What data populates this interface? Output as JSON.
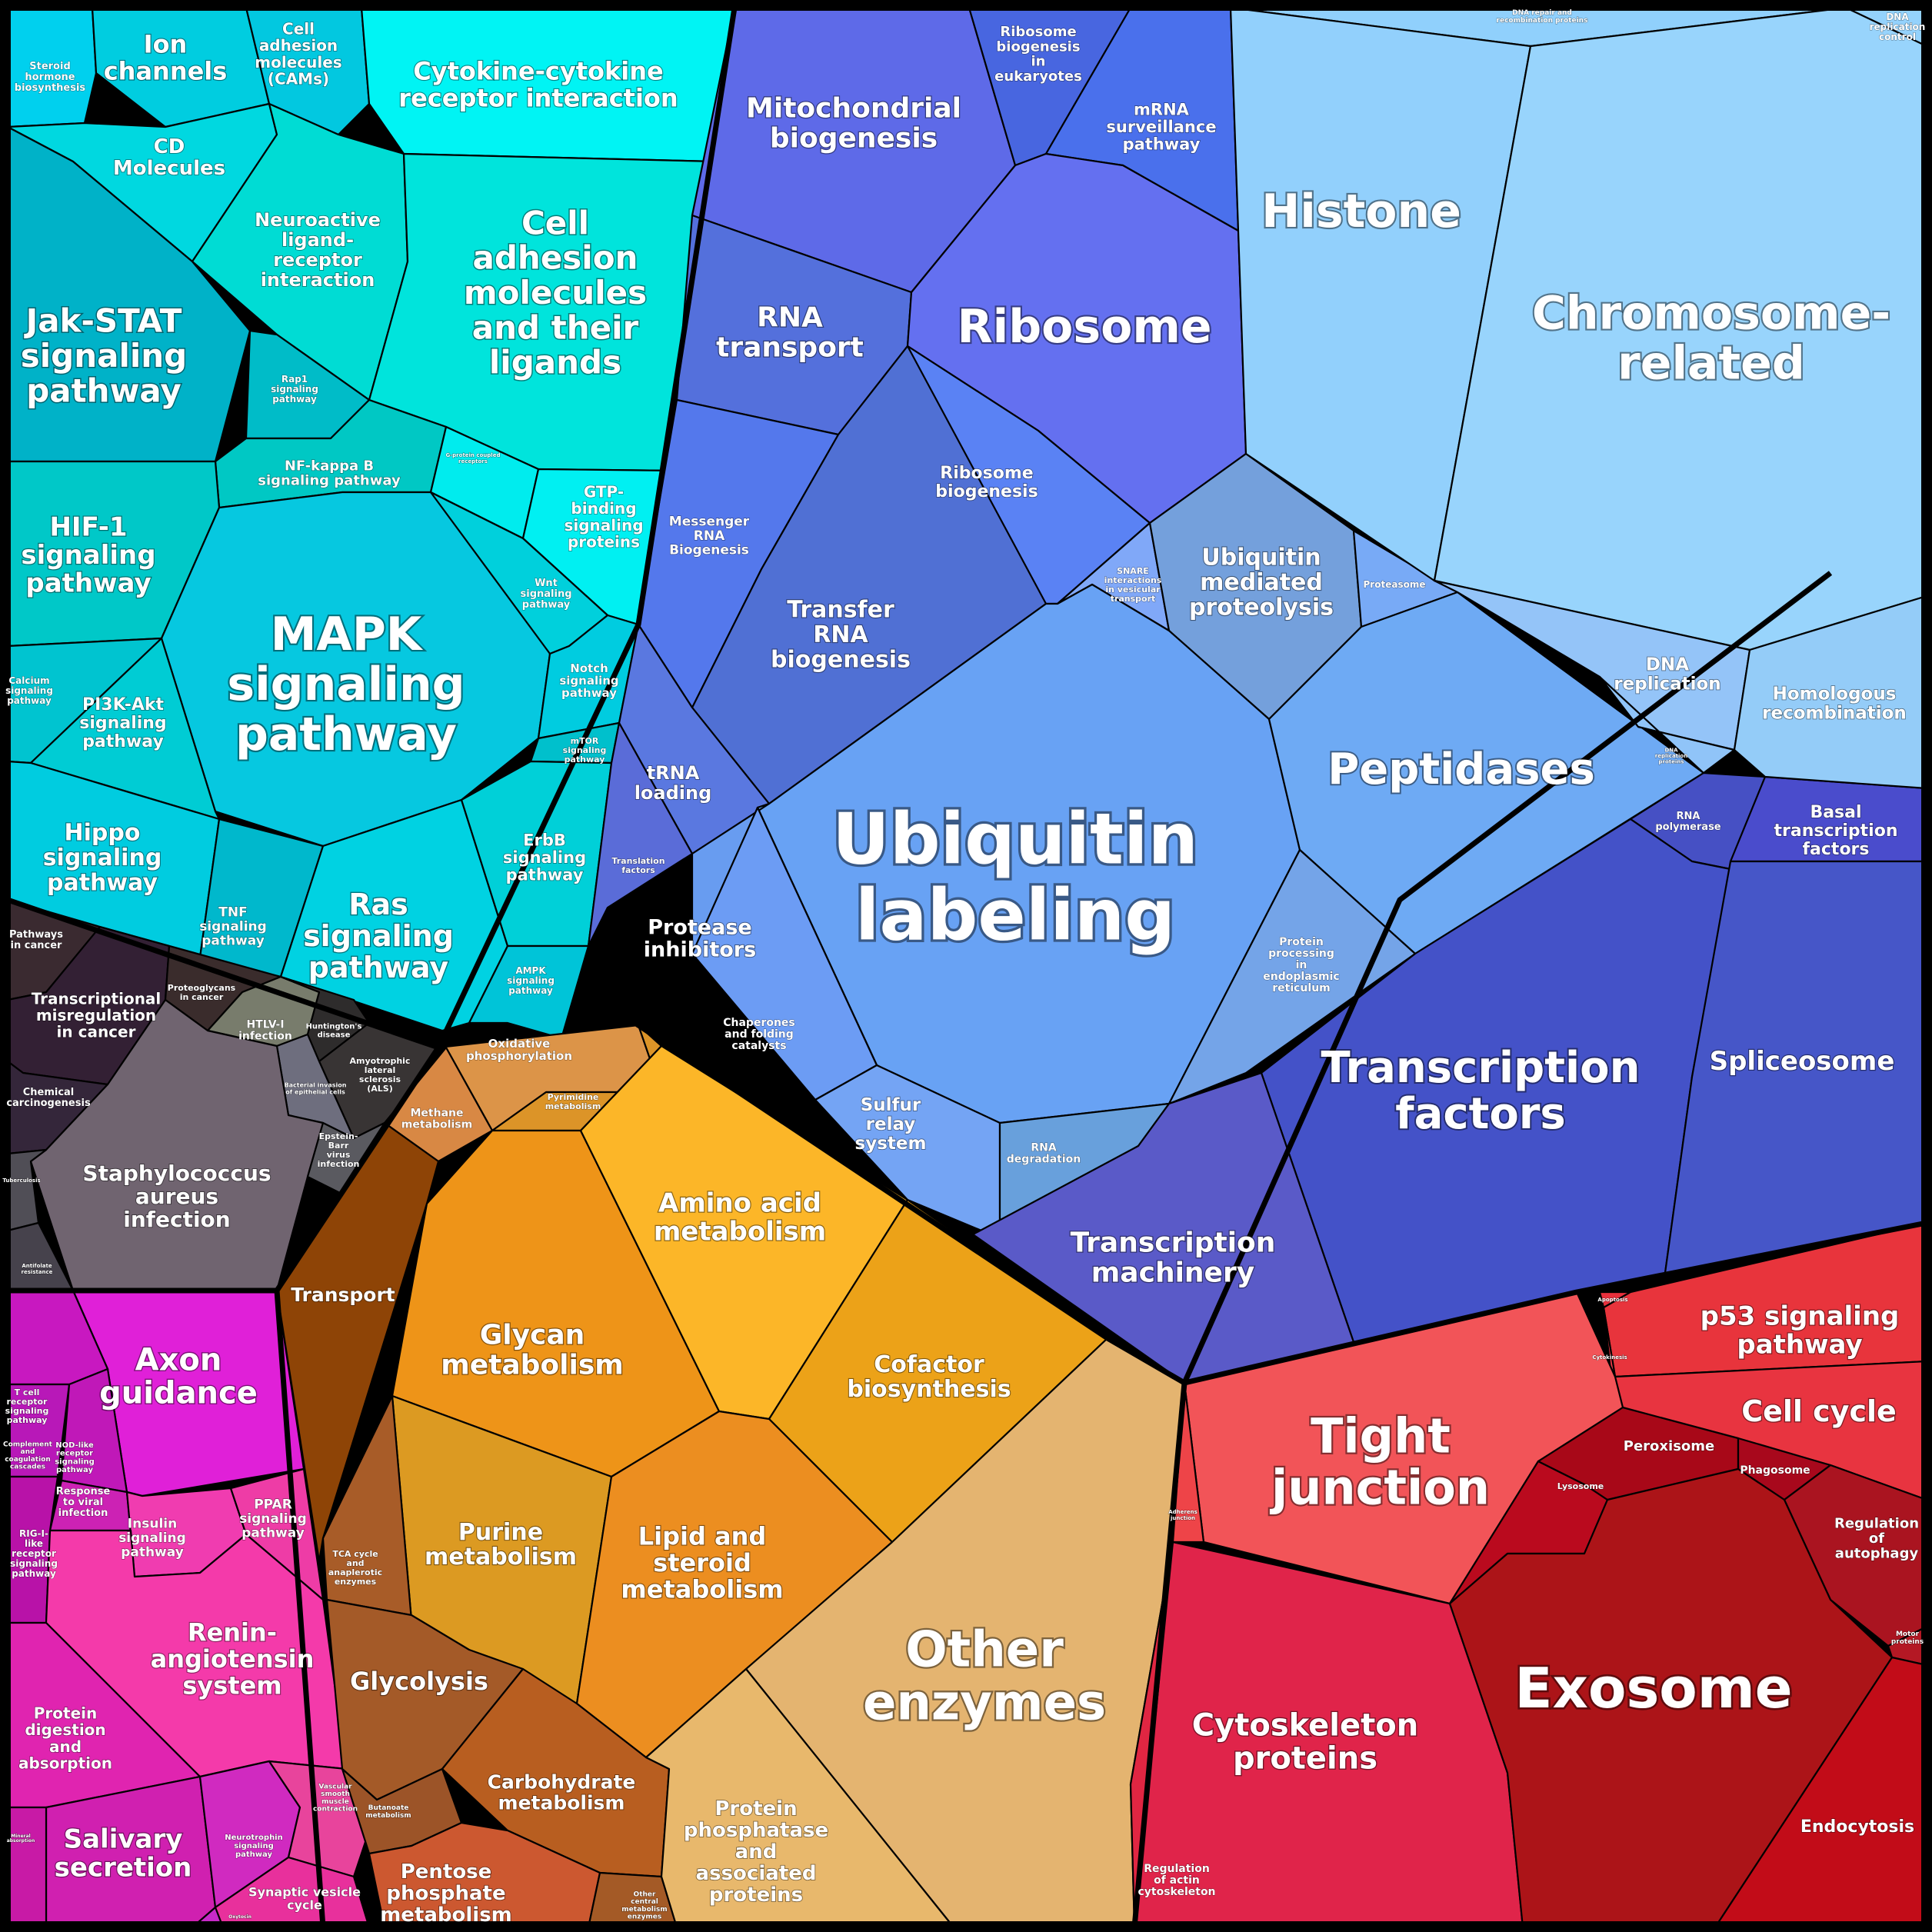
{
  "groups": [
    {
      "id": "signaling",
      "color": "#00d8e6"
    },
    {
      "id": "disease",
      "color": "#554450"
    },
    {
      "id": "organismal",
      "color": "#ee33cc"
    },
    {
      "id": "genetic",
      "color": "#5a6ae8"
    },
    {
      "id": "dna",
      "color": "#88c8ff"
    },
    {
      "id": "metabolism",
      "color": "#f09e20"
    },
    {
      "id": "cellular",
      "color": "#e02a3c"
    }
  ],
  "cells": [
    {
      "id": "c1",
      "label": [
        "Steroid",
        "hormone",
        "biosynthesis"
      ],
      "color": "#00d0ee"
    },
    {
      "id": "c2",
      "label": [
        "Ion",
        "channels"
      ],
      "color": "#00cde0"
    },
    {
      "id": "c3",
      "label": [
        "Cell",
        "adhesion",
        "molecules",
        "(CAMs)"
      ],
      "color": "#02c8e0"
    },
    {
      "id": "c4",
      "label": [
        "Cytokine-cytokine",
        "receptor interaction"
      ],
      "color": "#00f4f4"
    },
    {
      "id": "c5",
      "label": [
        "CD",
        "Molecules"
      ],
      "color": "#00d8e0"
    },
    {
      "id": "c6",
      "label": [
        "Neuroactive",
        "ligand-",
        "receptor",
        "interaction"
      ],
      "color": "#00dcd4"
    },
    {
      "id": "c7",
      "label": [
        "Cell",
        "adhesion",
        "molecules",
        "and their",
        "ligands"
      ],
      "color": "#00e4dc"
    },
    {
      "id": "c8",
      "label": [
        "Jak-STAT",
        "signaling",
        "pathway"
      ],
      "color": "#00b2c8"
    },
    {
      "id": "c9",
      "label": [
        "Rap1",
        "signaling",
        "pathway"
      ],
      "color": "#00bcc8"
    },
    {
      "id": "c10",
      "label": [
        "NF-kappa B",
        "signaling pathway"
      ],
      "color": "#00c8c4"
    },
    {
      "id": "c11",
      "label": [
        "G-protein coupled",
        "receptors"
      ],
      "color": "#00ecee"
    },
    {
      "id": "c12",
      "label": [
        "GTP-",
        "binding",
        "signaling",
        "proteins"
      ],
      "color": "#00f0f2"
    },
    {
      "id": "c13",
      "label": [
        "HIF-1",
        "signaling",
        "pathway"
      ],
      "color": "#00c8c8"
    },
    {
      "id": "c14",
      "label": [
        "MAPK",
        "signaling",
        "pathway"
      ],
      "color": "#06c8e0"
    },
    {
      "id": "c15",
      "label": [
        "Wnt",
        "signaling",
        "pathway"
      ],
      "color": "#00d0dc"
    },
    {
      "id": "c16",
      "label": [
        "Notch",
        "signaling",
        "pathway"
      ],
      "color": "#00cce0"
    },
    {
      "id": "c17",
      "label": [
        "mTOR",
        "signaling",
        "pathway"
      ],
      "color": "#00c0cc"
    },
    {
      "id": "c18",
      "label": [
        "Calcium",
        "signaling",
        "pathway"
      ],
      "color": "#00c4d0"
    },
    {
      "id": "c19",
      "label": [
        "PI3K-Akt",
        "signaling",
        "pathway"
      ],
      "color": "#00ccd4"
    },
    {
      "id": "c20",
      "label": [
        "Hippo",
        "signaling",
        "pathway"
      ],
      "color": "#00cce0"
    },
    {
      "id": "c21",
      "label": [
        "TNF",
        "signaling",
        "pathway"
      ],
      "color": "#00b8cc"
    },
    {
      "id": "c22",
      "label": [
        "Ras",
        "signaling",
        "pathway"
      ],
      "color": "#00d2e2"
    },
    {
      "id": "c23",
      "label": [
        "ErbB",
        "signaling",
        "pathway"
      ],
      "color": "#00d0d8"
    },
    {
      "id": "c24",
      "label": [
        "AMPK",
        "signaling",
        "pathway"
      ],
      "color": "#00c4d8"
    },
    {
      "id": "d1",
      "label": [
        "Pathways",
        "in cancer"
      ],
      "color": "#3a2a30"
    },
    {
      "id": "d2",
      "label": [
        "Transcriptional",
        "misregulation",
        "in cancer"
      ],
      "color": "#332034"
    },
    {
      "id": "d3",
      "label": [
        "Proteoglycans",
        "in cancer"
      ],
      "color": "#3a2c2c"
    },
    {
      "id": "d4",
      "label": [
        "HTLV-I",
        "infection"
      ],
      "color": "#787c6c"
    },
    {
      "id": "d5",
      "label": [
        "Huntington's",
        "disease"
      ],
      "color": "#2e2c2c"
    },
    {
      "id": "d6",
      "label": [
        "Chemical",
        "carcinogenesis"
      ],
      "color": "#34263a"
    },
    {
      "id": "d7",
      "label": [
        "Amyotrophic",
        "lateral",
        "sclerosis",
        "(ALS)"
      ],
      "color": "#383434"
    },
    {
      "id": "d8",
      "label": [
        "Bacterial invasion",
        "of epithelial cells"
      ],
      "color": "#6e6e7e"
    },
    {
      "id": "d9",
      "label": [
        "Staphylococcus",
        "aureus",
        "infection"
      ],
      "color": "#706470"
    },
    {
      "id": "d10",
      "label": [
        "Epstein-",
        "Barr",
        "virus",
        "infection"
      ],
      "color": "#5a5a60"
    },
    {
      "id": "d11",
      "label": [
        "Tuberculosis"
      ],
      "color": "#504e56"
    },
    {
      "id": "d12",
      "label": [
        "Antifolate",
        "resistance"
      ],
      "color": "#46424c"
    },
    {
      "id": "o1",
      "label": [
        "Axon",
        "guidance"
      ],
      "color": "#e020d8"
    },
    {
      "id": "o2",
      "label": [
        "T cell",
        "receptor",
        "signaling",
        "pathway"
      ],
      "color": "#c818c0"
    },
    {
      "id": "o3",
      "label": [
        "Complement",
        "and",
        "coagulation",
        "cascades"
      ],
      "color": "#b818b8"
    },
    {
      "id": "o4",
      "label": [
        "NOD-like",
        "receptor",
        "signaling",
        "pathway"
      ],
      "color": "#c018b8"
    },
    {
      "id": "o5",
      "label": [
        "Response",
        "to viral",
        "infection"
      ],
      "color": "#cc22b4"
    },
    {
      "id": "o6",
      "label": [
        "RIG-I-",
        "like",
        "receptor",
        "signaling",
        "pathway"
      ],
      "color": "#b812a8"
    },
    {
      "id": "o7",
      "label": [
        "Insulin",
        "signaling",
        "pathway"
      ],
      "color": "#f03cb0"
    },
    {
      "id": "o8",
      "label": [
        "PPAR",
        "signaling",
        "pathway"
      ],
      "color": "#ee3ca6"
    },
    {
      "id": "o9",
      "label": [
        "Renin-",
        "angiotensin",
        "system"
      ],
      "color": "#f43aaa"
    },
    {
      "id": "o10",
      "label": [
        "Protein",
        "digestion",
        "and",
        "absorption"
      ],
      "color": "#e024b0"
    },
    {
      "id": "o11",
      "label": [
        "Salivary",
        "secretion"
      ],
      "color": "#d020b0"
    },
    {
      "id": "o12",
      "label": [
        "Mineral",
        "absorption"
      ],
      "color": "#c81aa6"
    },
    {
      "id": "o13",
      "label": [
        "Neurotrophin",
        "signaling",
        "pathway"
      ],
      "color": "#d02ac0"
    },
    {
      "id": "o14",
      "label": [
        "Synaptic vesicle",
        "cycle"
      ],
      "color": "#c82ac8"
    },
    {
      "id": "o15",
      "label": [
        "Vascular",
        "smooth",
        "muscle",
        "contraction"
      ],
      "color": "#e8449c"
    },
    {
      "id": "o16",
      "label": [
        "Oxytocin"
      ],
      "color": "#e8309c"
    },
    {
      "id": "g1",
      "label": [
        "Mitochondrial",
        "biogenesis"
      ],
      "color": "#5e6ae8"
    },
    {
      "id": "g2",
      "label": [
        "Ribosome",
        "biogenesis",
        "in",
        "eukaryotes"
      ],
      "color": "#4866e0"
    },
    {
      "id": "g3",
      "label": [
        "mRNA",
        "surveillance",
        "pathway"
      ],
      "color": "#4a70ec"
    },
    {
      "id": "g4",
      "label": [
        "RNA",
        "transport"
      ],
      "color": "#5470dc"
    },
    {
      "id": "g5",
      "label": [
        "Ribosome"
      ],
      "color": "#6470f0"
    },
    {
      "id": "g6",
      "label": [
        "Messenger",
        "RNA",
        "Biogenesis"
      ],
      "color": "#5478ec"
    },
    {
      "id": "g7",
      "label": [
        "Transfer",
        "RNA",
        "biogenesis"
      ],
      "color": "#5070d4"
    },
    {
      "id": "g8",
      "label": [
        "Ribosome",
        "biogenesis"
      ],
      "color": "#5a82f4"
    },
    {
      "id": "g9",
      "label": [
        "tRNA",
        "loading"
      ],
      "color": "#5a78e0"
    },
    {
      "id": "g10",
      "label": [
        "Translation",
        "factors"
      ],
      "color": "#5a6cd8"
    },
    {
      "id": "g11",
      "label": [
        "SNARE",
        "interactions",
        "in vesicular",
        "transport"
      ],
      "color": "#80a8f8"
    },
    {
      "id": "g12",
      "label": [
        "Ubiquitin",
        "mediated",
        "proteolysis"
      ],
      "color": "#74a0dc"
    },
    {
      "id": "g13",
      "label": [
        "Proteasome"
      ],
      "color": "#78aaf6"
    },
    {
      "id": "g14",
      "label": [
        "Ubiquitin",
        "labeling"
      ],
      "color": "#68a2f4"
    },
    {
      "id": "g15",
      "label": [
        "Peptidases"
      ],
      "color": "#6eaaf4"
    },
    {
      "id": "g16",
      "label": [
        "Protease",
        "inhibitors"
      ],
      "color": "#689cf0"
    },
    {
      "id": "g17",
      "label": [
        "Chaperones",
        "and folding",
        "catalysts"
      ],
      "color": "#6c9cf4"
    },
    {
      "id": "g18",
      "label": [
        "Sulfur",
        "relay",
        "system"
      ],
      "color": "#74a4f4"
    },
    {
      "id": "g19",
      "label": [
        "RNA",
        "degradation"
      ],
      "color": "#68a0dc"
    },
    {
      "id": "g20",
      "label": [
        "Protein",
        "processing",
        "in",
        "endoplasmic",
        "reticulum"
      ],
      "color": "#74a4e8"
    },
    {
      "id": "g21",
      "label": [
        "RNA",
        "polymerase"
      ],
      "color": "#4650c4"
    },
    {
      "id": "g22",
      "label": [
        "Basal",
        "transcription",
        "factors"
      ],
      "color": "#4a4ccc"
    },
    {
      "id": "g23",
      "label": [
        "Transcription",
        "factors"
      ],
      "color": "#4452c8"
    },
    {
      "id": "g24",
      "label": [
        "Spliceosome"
      ],
      "color": "#4656c8"
    },
    {
      "id": "g25",
      "label": [
        "Transcription",
        "machinery"
      ],
      "color": "#5a5ac8"
    },
    {
      "id": "n1",
      "label": [
        "DNA repair and",
        "recombination proteins"
      ],
      "color": "#90d0fc"
    },
    {
      "id": "n2",
      "label": [
        "DNA",
        "replication",
        "control"
      ],
      "color": "#94d2fc"
    },
    {
      "id": "n3",
      "label": [
        "Histone"
      ],
      "color": "#92d0fc"
    },
    {
      "id": "n4",
      "label": [
        "Chromosome-",
        "related"
      ],
      "color": "#98d4fc"
    },
    {
      "id": "n5",
      "label": [
        "DNA",
        "replication"
      ],
      "color": "#94c4f8"
    },
    {
      "id": "n6",
      "label": [
        "Homologous",
        "recombination"
      ],
      "color": "#94ccf8"
    },
    {
      "id": "n7",
      "label": [
        "DNA",
        "replication",
        "proteins"
      ],
      "color": "#90c4f8"
    },
    {
      "id": "m1",
      "label": [
        "Oxidative",
        "phosphorylation"
      ],
      "color": "#dc9448"
    },
    {
      "id": "m2",
      "label": [
        "Methane",
        "metabolism"
      ],
      "color": "#d88844"
    },
    {
      "id": "m3",
      "label": [
        "Pyrimidine",
        "metabolism"
      ],
      "color": "#dc9428"
    },
    {
      "id": "m4",
      "label": [
        "Transport"
      ],
      "color": "#8e4406"
    },
    {
      "id": "m5",
      "label": [
        "Glycan",
        "metabolism"
      ],
      "color": "#ee9418"
    },
    {
      "id": "m6",
      "label": [
        "Amino acid",
        "metabolism"
      ],
      "color": "#fcb628"
    },
    {
      "id": "m7",
      "label": [
        "Cofactor",
        "biosynthesis"
      ],
      "color": "#eca218"
    },
    {
      "id": "m8",
      "label": [
        "Purine",
        "metabolism"
      ],
      "color": "#dc9a22"
    },
    {
      "id": "m9",
      "label": [
        "Lipid and",
        "steroid",
        "metabolism"
      ],
      "color": "#ec8e20"
    },
    {
      "id": "m10",
      "label": [
        "TCA cycle",
        "and",
        "anaplerotic",
        "enzymes"
      ],
      "color": "#a85c28"
    },
    {
      "id": "m11",
      "label": [
        "Glycolysis"
      ],
      "color": "#a45a28"
    },
    {
      "id": "m12",
      "label": [
        "Carbohydrate",
        "metabolism"
      ],
      "color": "#b85e20"
    },
    {
      "id": "m13",
      "label": [
        "Butanoate",
        "metabolism"
      ],
      "color": "#9c5428"
    },
    {
      "id": "m14",
      "label": [
        "Pentose",
        "phosphate",
        "metabolism"
      ],
      "color": "#cc5830"
    },
    {
      "id": "m15",
      "label": [
        "Other",
        "central",
        "metabolism",
        "enzymes"
      ],
      "color": "#a45a26"
    },
    {
      "id": "m16",
      "label": [
        "Other",
        "enzymes"
      ],
      "color": "#e4b470"
    },
    {
      "id": "m17",
      "label": [
        "Protein",
        "phosphatase",
        "and",
        "associated",
        "proteins"
      ],
      "color": "#e8b86c"
    },
    {
      "id": "r1",
      "label": [
        "Apoptosis"
      ],
      "color": "#e8303c"
    },
    {
      "id": "r2",
      "label": [
        "p53 signaling",
        "pathway"
      ],
      "color": "#e8343c"
    },
    {
      "id": "r3",
      "label": [
        "Cytokinesis"
      ],
      "color": "#f03a48"
    },
    {
      "id": "r4",
      "label": [
        "Cell cycle"
      ],
      "color": "#e83440"
    },
    {
      "id": "r5",
      "label": [
        "Tight",
        "junction"
      ],
      "color": "#f25458"
    },
    {
      "id": "r6",
      "label": [
        "Adherens",
        "junction"
      ],
      "color": "#ee4448"
    },
    {
      "id": "r7",
      "label": [
        "Lysosome"
      ],
      "color": "#ba0a1e"
    },
    {
      "id": "r8",
      "label": [
        "Peroxisome"
      ],
      "color": "#a80818"
    },
    {
      "id": "r9",
      "label": [
        "Phagosome"
      ],
      "color": "#a8081c"
    },
    {
      "id": "r10",
      "label": [
        "Regulation",
        "of",
        "autophagy"
      ],
      "color": "#aa1420"
    },
    {
      "id": "r11",
      "label": [
        "Cytoskeleton",
        "proteins"
      ],
      "color": "#e0244a"
    },
    {
      "id": "r12",
      "label": [
        "Exosome"
      ],
      "color": "#ac1418"
    },
    {
      "id": "r13",
      "label": [
        "Motor",
        "proteins"
      ],
      "color": "#b41824"
    },
    {
      "id": "r14",
      "label": [
        "Regulation",
        "of actin",
        "cytoskeleton"
      ],
      "color": "#e02642"
    },
    {
      "id": "r15",
      "label": [
        "Endocytosis"
      ],
      "color": "#c20c18"
    }
  ]
}
